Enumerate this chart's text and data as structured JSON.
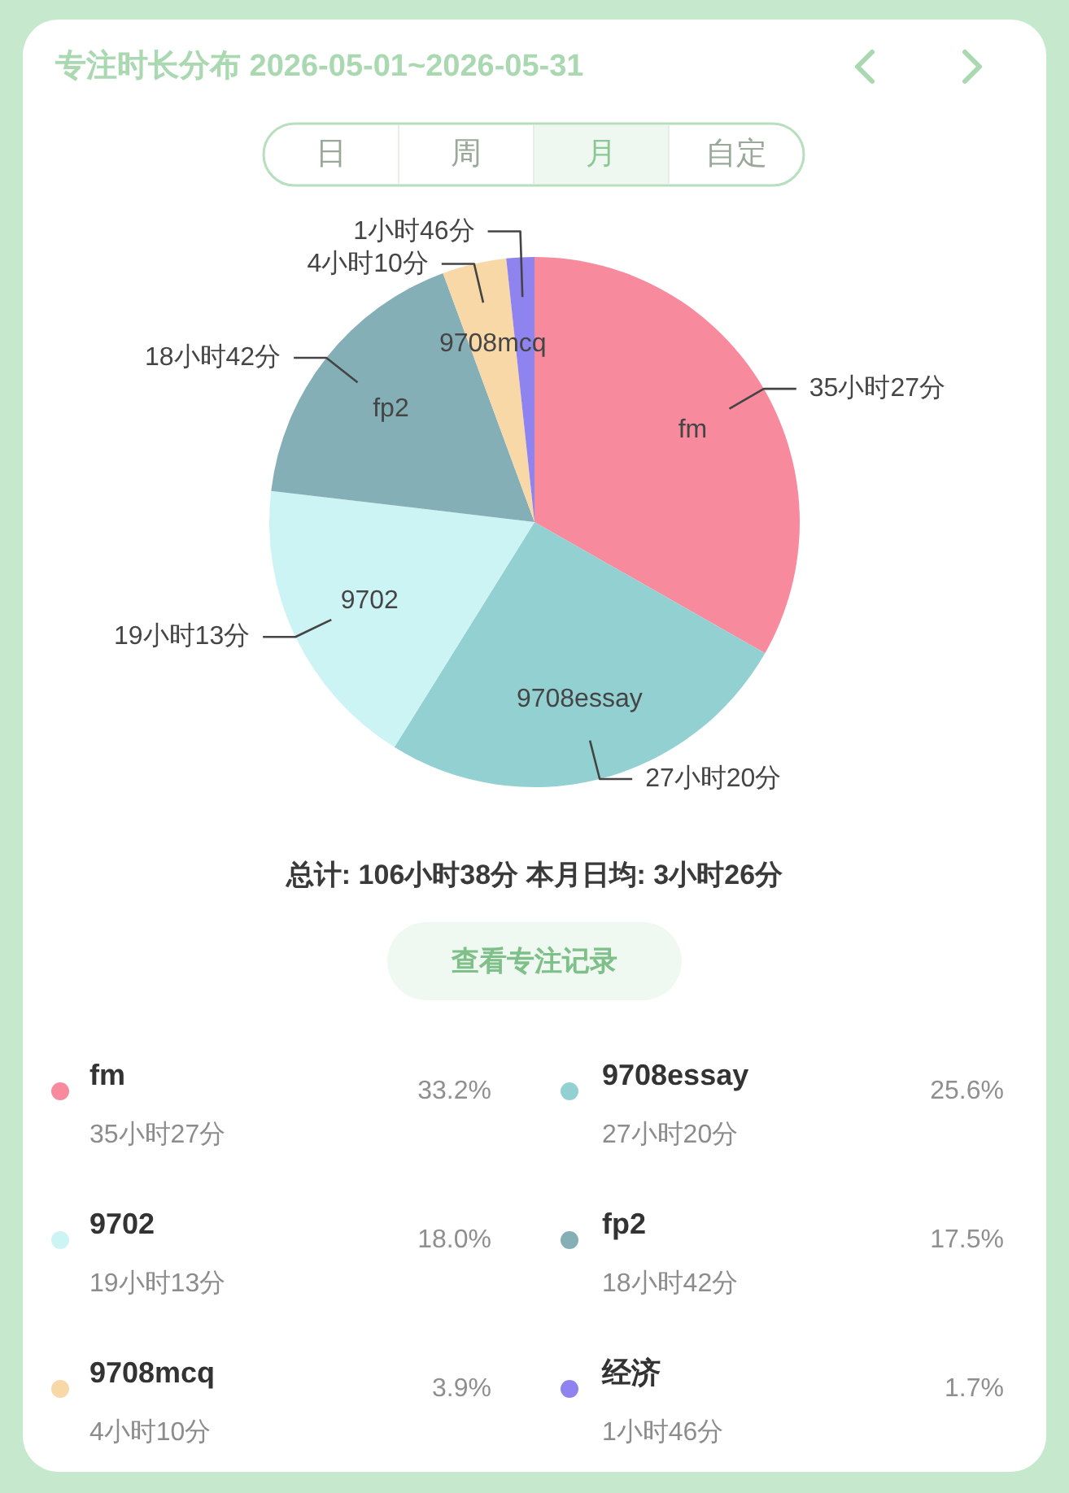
{
  "chart_data": {
    "type": "pie",
    "title": "专注时长分布 2026-05-01~2026-05-31",
    "subtitle": "总计: 106小时38分  本月日均: 3小时26分",
    "categories": [
      "fm",
      "9708essay",
      "9702",
      "fp2",
      "9708mcq",
      "经济"
    ],
    "values": [
      33.2,
      25.6,
      18.0,
      17.5,
      3.9,
      1.7
    ],
    "colors": [
      "#f78a9c",
      "#93d0d2",
      "#cdf4f4",
      "#84afb6",
      "#f9d8a8",
      "#8f83ef"
    ],
    "value_labels": [
      "33.2%",
      "25.6%",
      "18.0%",
      "17.5%",
      "3.9%",
      "1.7%"
    ],
    "legend": "bottom",
    "annotations": [
      "日",
      "周",
      "月",
      "自定",
      "查看专注记录",
      "35小时27分",
      "27小时20分",
      "19小时13分",
      "18小时42分",
      "4小时10分",
      "1小时46分"
    ]
  }
}
